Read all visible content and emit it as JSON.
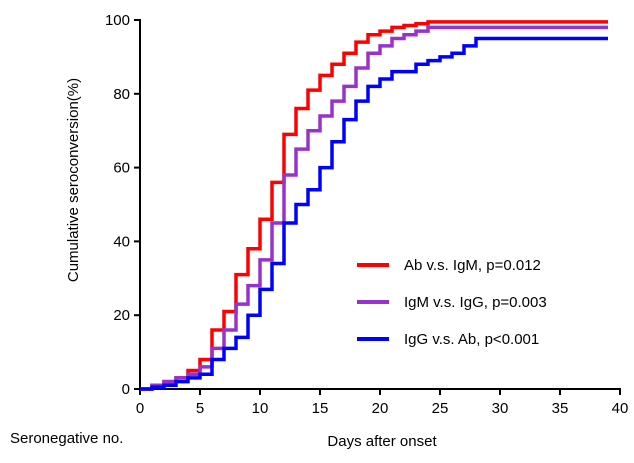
{
  "chart_data": {
    "type": "line",
    "step": true,
    "xlabel": "Days after onset",
    "ylabel": "Cumulative seroconversion(%)",
    "xlim": [
      0,
      40
    ],
    "ylim": [
      0,
      100
    ],
    "xticks": [
      0,
      5,
      10,
      15,
      20,
      25,
      30,
      35,
      40
    ],
    "yticks": [
      0,
      20,
      40,
      60,
      80,
      100
    ],
    "grid": false,
    "legend_position": "center-right",
    "series": [
      {
        "name": "Ab v.s. IgM, p=0.012",
        "color": "#ff0000",
        "x": [
          0,
          1,
          2,
          3,
          4,
          5,
          6,
          7,
          8,
          9,
          10,
          11,
          12,
          13,
          14,
          15,
          16,
          17,
          18,
          19,
          20,
          21,
          22,
          23,
          24,
          25,
          27,
          39
        ],
        "y": [
          0,
          1,
          2,
          3,
          5,
          8,
          16,
          21,
          31,
          38,
          46,
          56,
          69,
          76,
          81,
          85,
          88,
          91,
          94,
          96,
          97,
          98,
          98.5,
          99,
          99.5,
          99.5,
          99.5,
          99.5
        ]
      },
      {
        "name": "IgM v.s. IgG, p=0.003",
        "color": "#9932cc",
        "x": [
          0,
          1,
          2,
          3,
          4,
          5,
          6,
          7,
          8,
          9,
          10,
          11,
          12,
          13,
          14,
          15,
          16,
          17,
          18,
          19,
          20,
          21,
          22,
          23,
          24,
          25,
          26,
          27,
          39
        ],
        "y": [
          0,
          1,
          2,
          3,
          4,
          6,
          11,
          16,
          23,
          28,
          35,
          45,
          58,
          65,
          70,
          74,
          78,
          82,
          87,
          91,
          93,
          95,
          96,
          97,
          98,
          98,
          98,
          98,
          98
        ]
      },
      {
        "name": "IgG v.s. Ab, p<0.001",
        "color": "#0000ff",
        "x": [
          0,
          1,
          2,
          3,
          4,
          5,
          6,
          7,
          8,
          9,
          10,
          11,
          12,
          13,
          14,
          15,
          16,
          17,
          18,
          19,
          20,
          21,
          22,
          23,
          24,
          25,
          26,
          27,
          28,
          39
        ],
        "y": [
          0,
          0.5,
          1,
          2,
          3,
          4,
          8,
          11,
          14,
          20,
          27,
          34,
          45,
          50,
          54,
          60,
          67,
          73,
          78,
          82,
          84,
          86,
          86,
          88,
          89,
          90,
          91,
          93,
          95,
          95
        ]
      }
    ]
  },
  "footnote": "Seronegative no."
}
